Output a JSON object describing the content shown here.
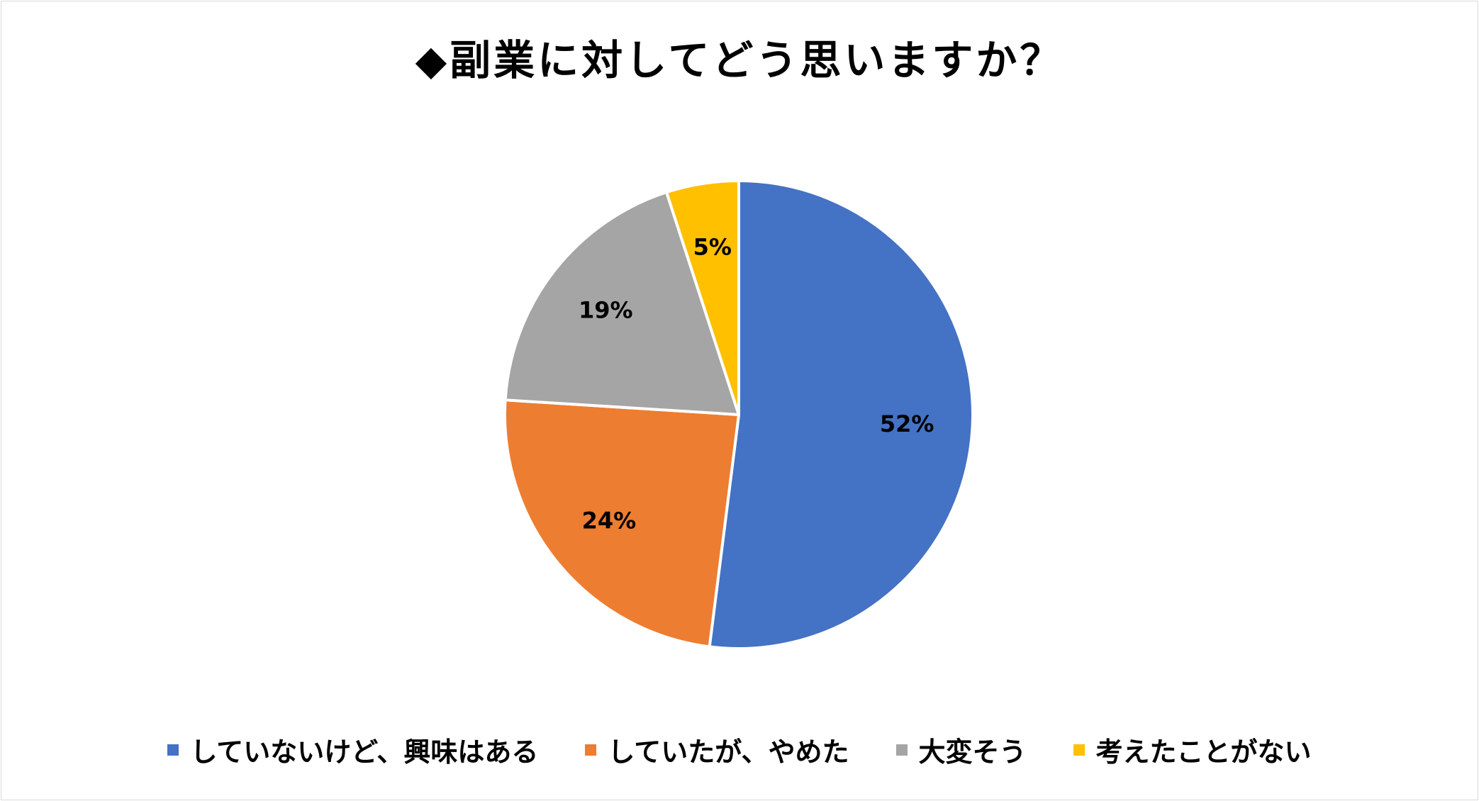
{
  "chart_data": {
    "type": "pie",
    "title": "◆副業に対してどう思いますか？",
    "categories": [
      "していないけど、興味はある",
      "していたが、やめた",
      "大変そう",
      "考えたことがない"
    ],
    "values": [
      52,
      24,
      19,
      5
    ],
    "data_labels": [
      "52%",
      "24%",
      "19%",
      "5%"
    ],
    "colors": [
      "#4472c4",
      "#ed7d31",
      "#a5a5a5",
      "#ffc000"
    ],
    "start_angle": "12 o'clock",
    "direction": "clockwise",
    "legend_position": "bottom"
  }
}
